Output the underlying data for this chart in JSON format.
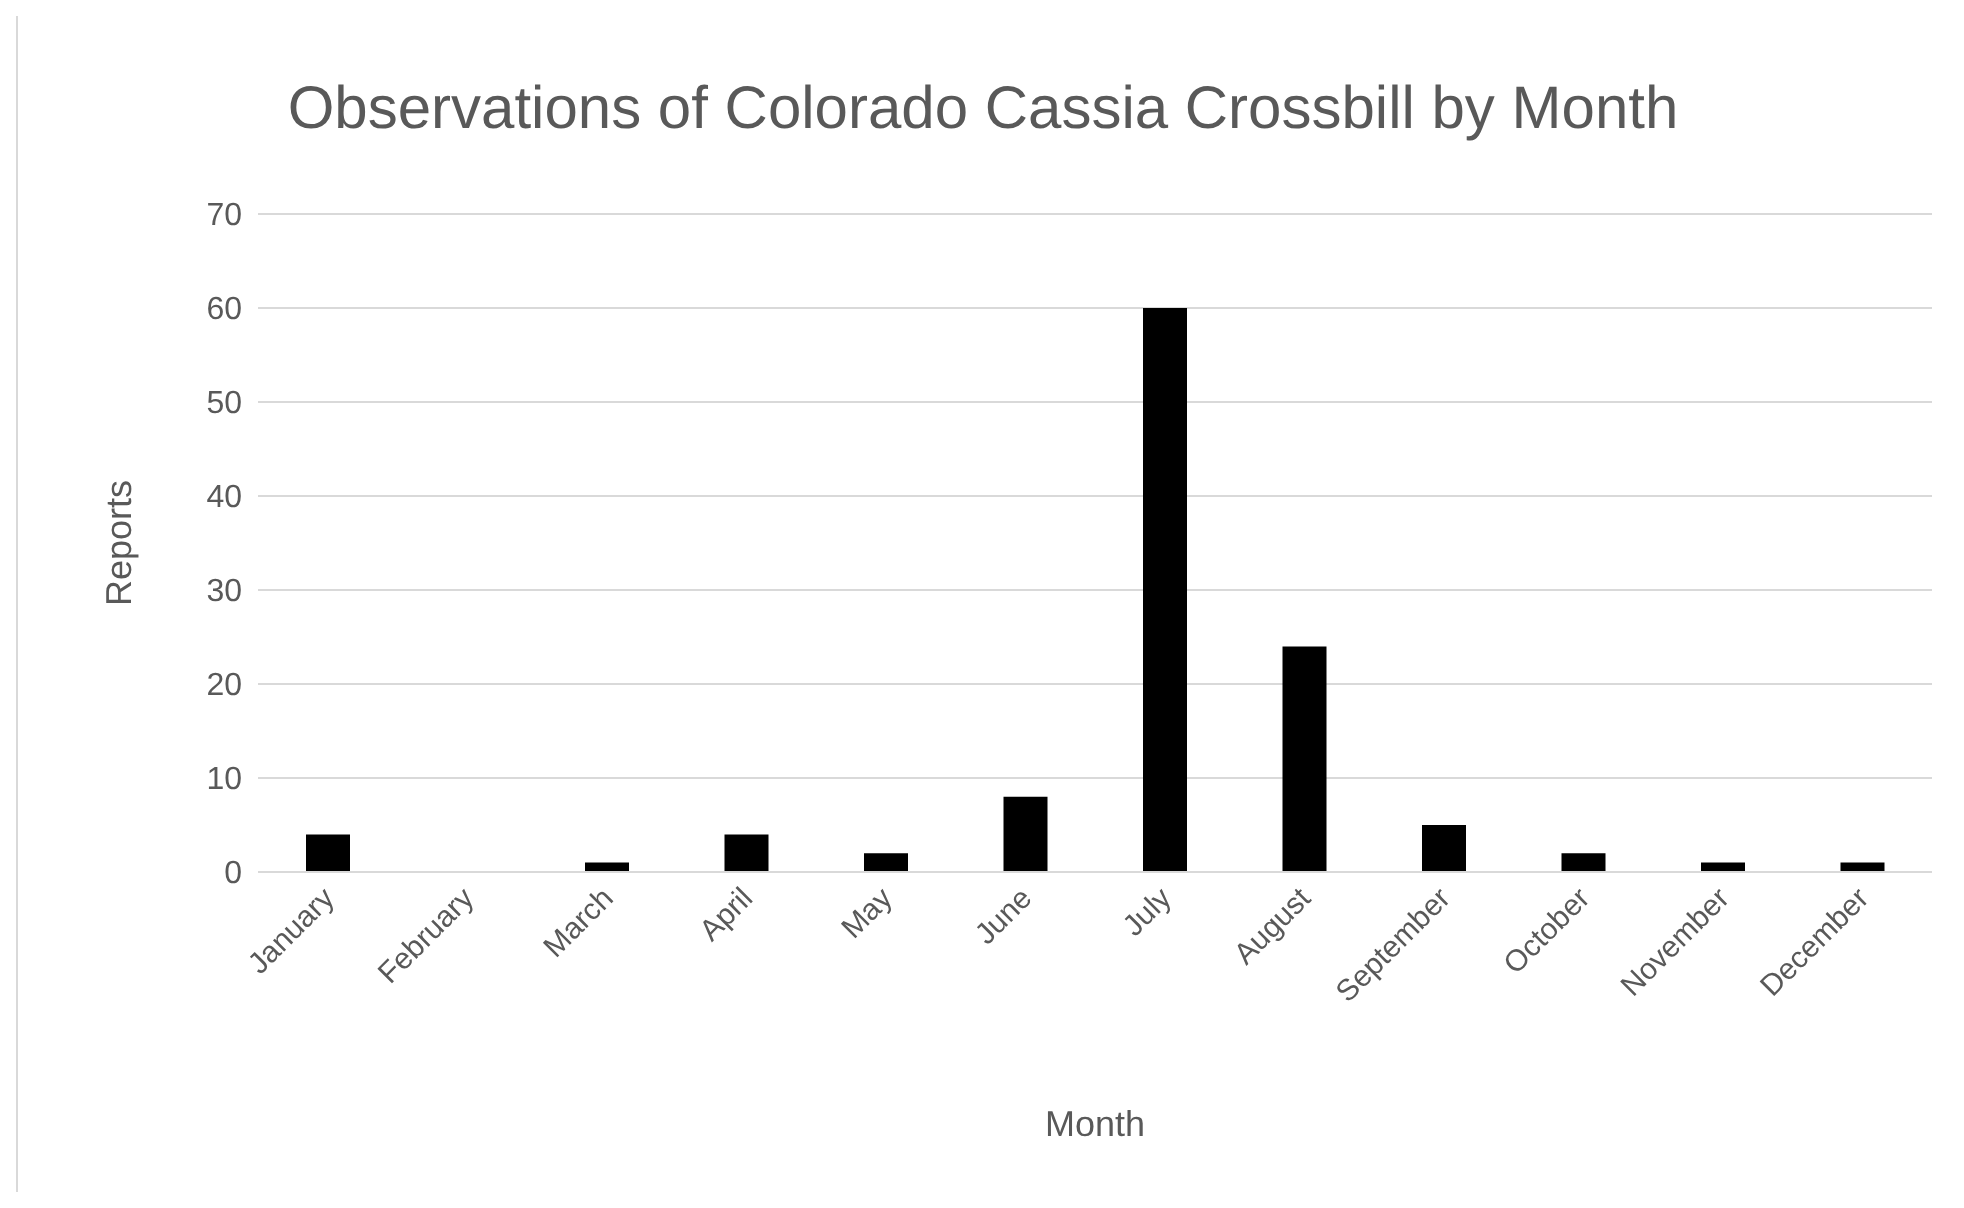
{
  "chart_data": {
    "type": "bar",
    "title": "Observations of Colorado Cassia Crossbill by Month",
    "xlabel": "Month",
    "ylabel": "Reports",
    "categories": [
      "January",
      "February",
      "March",
      "April",
      "May",
      "June",
      "July",
      "August",
      "September",
      "October",
      "November",
      "December"
    ],
    "values": [
      4,
      0,
      1,
      4,
      2,
      8,
      60,
      24,
      5,
      2,
      1,
      1
    ],
    "color": "#000000",
    "ylim": [
      0,
      70
    ],
    "yticks": [
      0,
      10,
      20,
      30,
      40,
      50,
      60,
      70
    ],
    "grid": "y",
    "legend": false
  }
}
